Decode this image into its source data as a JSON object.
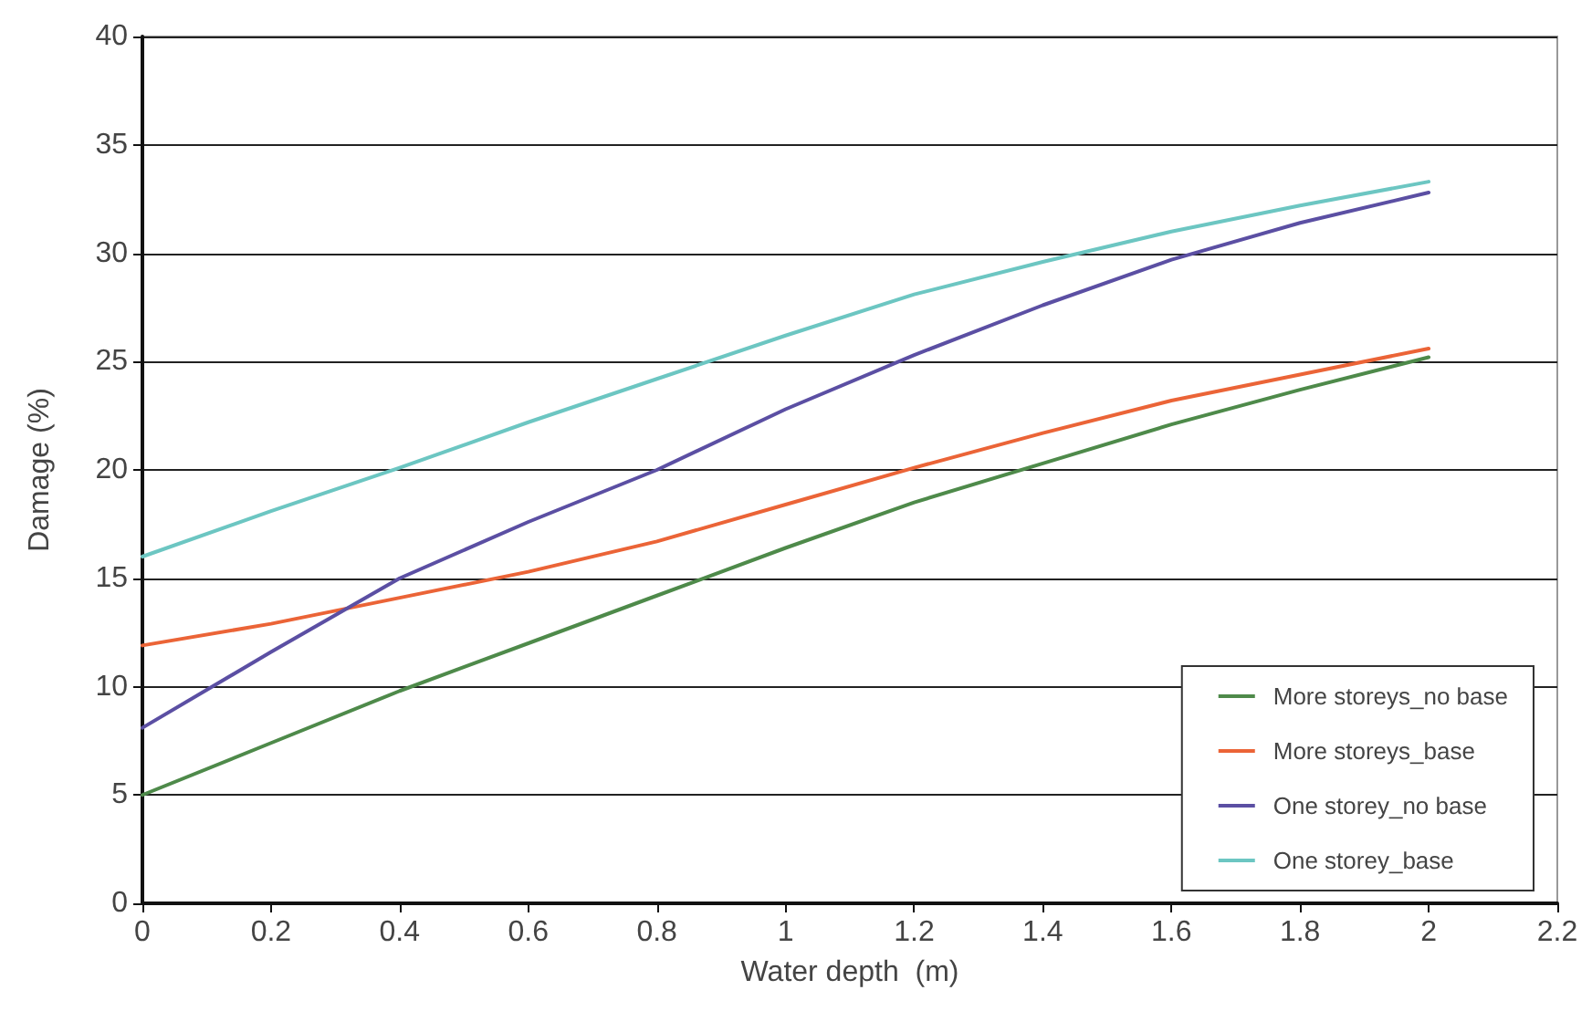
{
  "chart_data": {
    "type": "line",
    "xlabel": "Water depth  (m)",
    "ylabel": "Damage (%)",
    "x": [
      0,
      0.2,
      0.4,
      0.6,
      0.8,
      1.0,
      1.2,
      1.4,
      1.6,
      1.8,
      2.0
    ],
    "series": [
      {
        "name": "More storeys_no base",
        "color": "#4e8a4a",
        "values": [
          5,
          7.4,
          9.8,
          12.0,
          14.2,
          16.4,
          18.5,
          20.3,
          22.1,
          23.7,
          25.2
        ]
      },
      {
        "name": "More storeys_base",
        "color": "#eb6437",
        "values": [
          11.9,
          12.9,
          14.1,
          15.3,
          16.7,
          18.4,
          20.1,
          21.7,
          23.2,
          24.4,
          25.6
        ]
      },
      {
        "name": "One storey_no base",
        "color": "#5b4fa3",
        "values": [
          8.1,
          11.6,
          15.0,
          17.6,
          20.0,
          22.8,
          25.3,
          27.6,
          29.7,
          31.4,
          32.8
        ]
      },
      {
        "name": "One storey_base",
        "color": "#6cc6c2",
        "values": [
          16,
          18.1,
          20.1,
          22.2,
          24.2,
          26.2,
          28.1,
          29.6,
          31.0,
          32.2,
          33.3
        ]
      }
    ],
    "xlim": [
      0,
      2.2
    ],
    "xticks": [
      0,
      0.2,
      0.4,
      0.6,
      0.8,
      1,
      1.2,
      1.4,
      1.6,
      1.8,
      2,
      2.2
    ],
    "ylim": [
      0,
      40
    ],
    "yticks": [
      0,
      5,
      10,
      15,
      20,
      25,
      30,
      35,
      40
    ],
    "grid": "y",
    "legend": "bottom right",
    "marker": "none",
    "line_style": "solid"
  }
}
